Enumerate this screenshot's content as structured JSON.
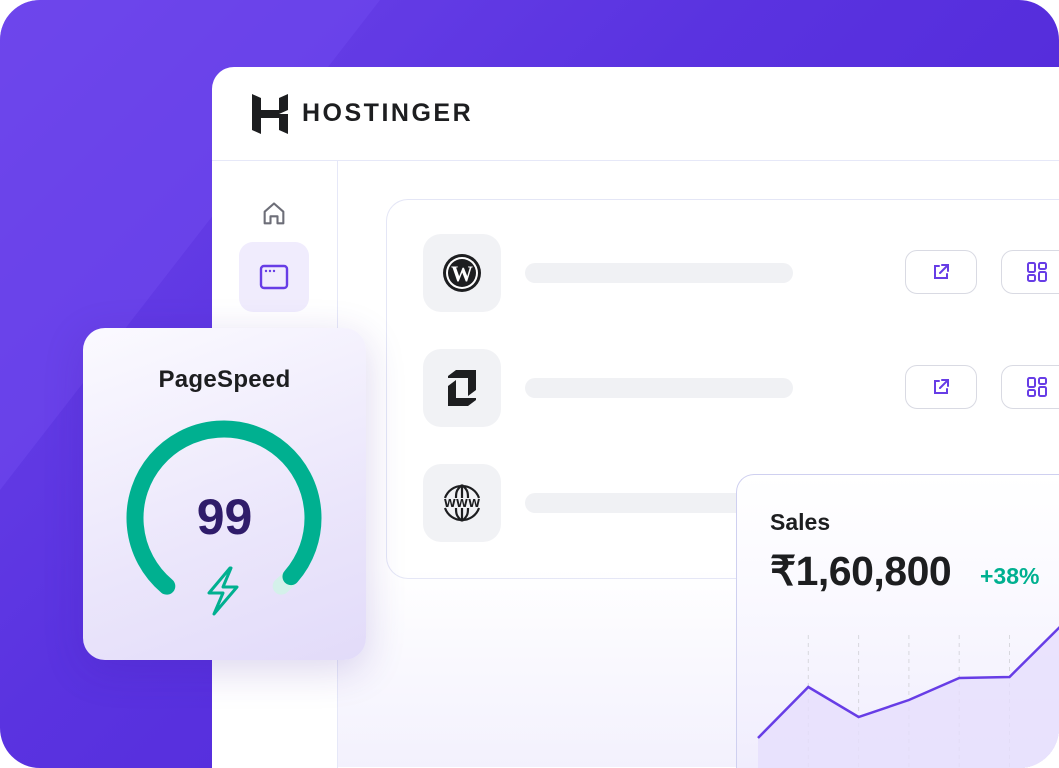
{
  "brand": {
    "name": "HOSTINGER"
  },
  "sidebar": {
    "items": [
      {
        "icon": "home-icon",
        "active": false
      },
      {
        "icon": "browser-window-icon",
        "active": true
      }
    ]
  },
  "sites": [
    {
      "logo": "wordpress-icon",
      "actions": [
        "external-link-icon",
        "dashboard-grid-icon"
      ]
    },
    {
      "logo": "hostinger-builder-icon",
      "actions": [
        "external-link-icon",
        "dashboard-grid-icon"
      ]
    },
    {
      "logo": "www-globe-icon",
      "actions": []
    }
  ],
  "pagespeed": {
    "title": "PageSpeed",
    "score": "99",
    "score_value": 99,
    "color": "#00b090",
    "icon": "lightning-icon"
  },
  "sales": {
    "title": "Sales",
    "value": "₹1,60,800",
    "change": "+38%",
    "change_color": "#00b090",
    "line_color": "#673de6"
  },
  "chart_data": {
    "type": "area",
    "values": [
      0,
      5.1,
      2.1,
      3.8,
      6.0,
      6.1,
      11.1
    ],
    "grid": "vertical-dashed"
  },
  "colors": {
    "accent": "#673de6",
    "background": "#5a33e0"
  }
}
